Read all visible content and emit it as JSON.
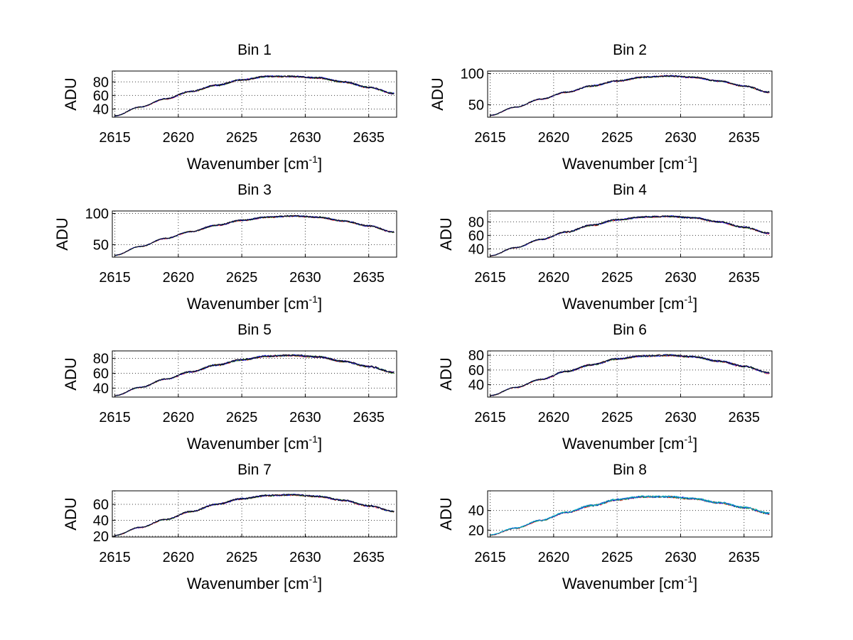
{
  "chart_data": [
    {
      "type": "line",
      "title": "Bin 1",
      "xlabel": "Wavenumber [cm",
      "xlabel_sup": "-1",
      "xlabel_close": "]",
      "ylabel": "ADU",
      "xlim": [
        2614.8,
        2637.2
      ],
      "ylim": [
        28,
        96
      ],
      "xticks": [
        2615,
        2620,
        2625,
        2630,
        2635
      ],
      "yticks": [
        40,
        60,
        80
      ],
      "grid": true,
      "profile": {
        "x": [
          2615,
          2617,
          2619,
          2621,
          2623,
          2625,
          2627,
          2629,
          2631,
          2633,
          2635,
          2637
        ],
        "y": [
          30,
          43,
          55,
          66,
          75,
          83,
          88,
          88,
          86,
          80,
          72,
          63
        ]
      },
      "noise": 1.2,
      "series": [
        {
          "name": "red",
          "color": "#ff0000"
        },
        {
          "name": "green",
          "color": "#008000"
        },
        {
          "name": "blue",
          "color": "#0000ff"
        },
        {
          "name": "dark",
          "color": "#000000"
        }
      ]
    },
    {
      "type": "line",
      "title": "Bin 2",
      "xlabel": "Wavenumber [cm",
      "xlabel_sup": "-1",
      "xlabel_close": "]",
      "ylabel": "ADU",
      "xlim": [
        2614.8,
        2637.2
      ],
      "ylim": [
        30,
        104
      ],
      "xticks": [
        2615,
        2620,
        2625,
        2630,
        2635
      ],
      "yticks": [
        50,
        100
      ],
      "grid": true,
      "profile": {
        "x": [
          2615,
          2617,
          2619,
          2621,
          2623,
          2625,
          2627,
          2629,
          2631,
          2633,
          2635,
          2637
        ],
        "y": [
          33,
          46,
          59,
          70,
          80,
          88,
          94,
          96,
          94,
          88,
          80,
          70
        ]
      },
      "noise": 1.2,
      "series": [
        {
          "name": "red",
          "color": "#ff0000"
        },
        {
          "name": "green",
          "color": "#008000"
        },
        {
          "name": "blue",
          "color": "#0000ff"
        },
        {
          "name": "dark",
          "color": "#000000"
        }
      ]
    },
    {
      "type": "line",
      "title": "Bin 3",
      "xlabel": "Wavenumber [cm",
      "xlabel_sup": "-1",
      "xlabel_close": "]",
      "ylabel": "ADU",
      "xlim": [
        2614.8,
        2637.2
      ],
      "ylim": [
        30,
        104
      ],
      "xticks": [
        2615,
        2620,
        2625,
        2630,
        2635
      ],
      "yticks": [
        50,
        100
      ],
      "grid": true,
      "profile": {
        "x": [
          2615,
          2617,
          2619,
          2621,
          2623,
          2625,
          2627,
          2629,
          2631,
          2633,
          2635,
          2637
        ],
        "y": [
          33,
          47,
          60,
          71,
          81,
          89,
          94,
          96,
          94,
          88,
          80,
          70
        ]
      },
      "noise": 1.2,
      "series": [
        {
          "name": "red",
          "color": "#ff0000"
        },
        {
          "name": "green",
          "color": "#008000"
        },
        {
          "name": "blue",
          "color": "#0000ff"
        },
        {
          "name": "dark",
          "color": "#000000"
        }
      ]
    },
    {
      "type": "line",
      "title": "Bin 4",
      "xlabel": "Wavenumber [cm",
      "xlabel_sup": "-1",
      "xlabel_close": "]",
      "ylabel": "ADU",
      "xlim": [
        2614.8,
        2637.2
      ],
      "ylim": [
        28,
        96
      ],
      "xticks": [
        2615,
        2620,
        2625,
        2630,
        2635
      ],
      "yticks": [
        40,
        60,
        80
      ],
      "grid": true,
      "profile": {
        "x": [
          2615,
          2617,
          2619,
          2621,
          2623,
          2625,
          2627,
          2629,
          2631,
          2633,
          2635,
          2637
        ],
        "y": [
          30,
          42,
          54,
          65,
          75,
          83,
          87,
          88,
          86,
          80,
          72,
          63
        ]
      },
      "noise": 1.2,
      "series": [
        {
          "name": "red",
          "color": "#ff0000"
        },
        {
          "name": "green",
          "color": "#008000"
        },
        {
          "name": "blue",
          "color": "#0000ff"
        },
        {
          "name": "dark",
          "color": "#000000"
        }
      ]
    },
    {
      "type": "line",
      "title": "Bin 5",
      "xlabel": "Wavenumber [cm",
      "xlabel_sup": "-1",
      "xlabel_close": "]",
      "ylabel": "ADU",
      "xlim": [
        2614.8,
        2637.2
      ],
      "ylim": [
        28,
        90
      ],
      "xticks": [
        2615,
        2620,
        2625,
        2630,
        2635
      ],
      "yticks": [
        40,
        60,
        80
      ],
      "grid": true,
      "profile": {
        "x": [
          2615,
          2617,
          2619,
          2621,
          2623,
          2625,
          2627,
          2629,
          2631,
          2633,
          2635,
          2637
        ],
        "y": [
          30,
          41,
          52,
          62,
          71,
          78,
          83,
          84,
          82,
          76,
          69,
          61
        ]
      },
      "noise": 1.2,
      "series": [
        {
          "name": "red",
          "color": "#ff0000"
        },
        {
          "name": "green",
          "color": "#008000"
        },
        {
          "name": "blue",
          "color": "#0000ff"
        },
        {
          "name": "dark",
          "color": "#000000"
        }
      ]
    },
    {
      "type": "line",
      "title": "Bin 6",
      "xlabel": "Wavenumber [cm",
      "xlabel_sup": "-1",
      "xlabel_close": "]",
      "ylabel": "ADU",
      "xlim": [
        2614.8,
        2637.2
      ],
      "ylim": [
        23,
        86
      ],
      "xticks": [
        2615,
        2620,
        2625,
        2630,
        2635
      ],
      "yticks": [
        40,
        60,
        80
      ],
      "grid": true,
      "profile": {
        "x": [
          2615,
          2617,
          2619,
          2621,
          2623,
          2625,
          2627,
          2629,
          2631,
          2633,
          2635,
          2637
        ],
        "y": [
          25,
          36,
          47,
          58,
          67,
          75,
          79,
          80,
          78,
          72,
          65,
          56
        ]
      },
      "noise": 1.2,
      "series": [
        {
          "name": "red",
          "color": "#ff0000"
        },
        {
          "name": "green",
          "color": "#008000"
        },
        {
          "name": "blue",
          "color": "#0000ff"
        },
        {
          "name": "dark",
          "color": "#000000"
        }
      ]
    },
    {
      "type": "line",
      "title": "Bin 7",
      "xlabel": "Wavenumber [cm",
      "xlabel_sup": "-1",
      "xlabel_close": "]",
      "ylabel": "ADU",
      "xlim": [
        2614.8,
        2637.2
      ],
      "ylim": [
        19,
        77
      ],
      "xticks": [
        2615,
        2620,
        2625,
        2630,
        2635
      ],
      "yticks": [
        20,
        40,
        60
      ],
      "grid": true,
      "profile": {
        "x": [
          2615,
          2617,
          2619,
          2621,
          2623,
          2625,
          2627,
          2629,
          2631,
          2633,
          2635,
          2637
        ],
        "y": [
          21,
          31,
          41,
          51,
          60,
          67,
          71,
          72,
          70,
          65,
          58,
          51
        ]
      },
      "noise": 1.0,
      "series": [
        {
          "name": "red",
          "color": "#ff0000"
        },
        {
          "name": "green",
          "color": "#008000"
        },
        {
          "name": "blue",
          "color": "#0000ff"
        },
        {
          "name": "dark",
          "color": "#000000"
        }
      ]
    },
    {
      "type": "line",
      "title": "Bin 8",
      "xlabel": "Wavenumber [cm",
      "xlabel_sup": "-1",
      "xlabel_close": "]",
      "ylabel": "ADU",
      "xlim": [
        2614.8,
        2637.2
      ],
      "ylim": [
        13,
        60
      ],
      "xticks": [
        2615,
        2620,
        2625,
        2630,
        2635
      ],
      "yticks": [
        20,
        40
      ],
      "grid": true,
      "profile": {
        "x": [
          2615,
          2617,
          2619,
          2621,
          2623,
          2625,
          2627,
          2629,
          2631,
          2633,
          2635,
          2637
        ],
        "y": [
          15,
          22,
          30,
          38,
          45,
          51,
          54,
          54,
          52,
          48,
          43,
          37
        ]
      },
      "noise": 1.0,
      "series": [
        {
          "name": "red",
          "color": "#ff0000"
        },
        {
          "name": "green",
          "color": "#008000"
        },
        {
          "name": "blue",
          "color": "#0000ff"
        },
        {
          "name": "cyan",
          "color": "#00bfbf"
        }
      ]
    }
  ]
}
